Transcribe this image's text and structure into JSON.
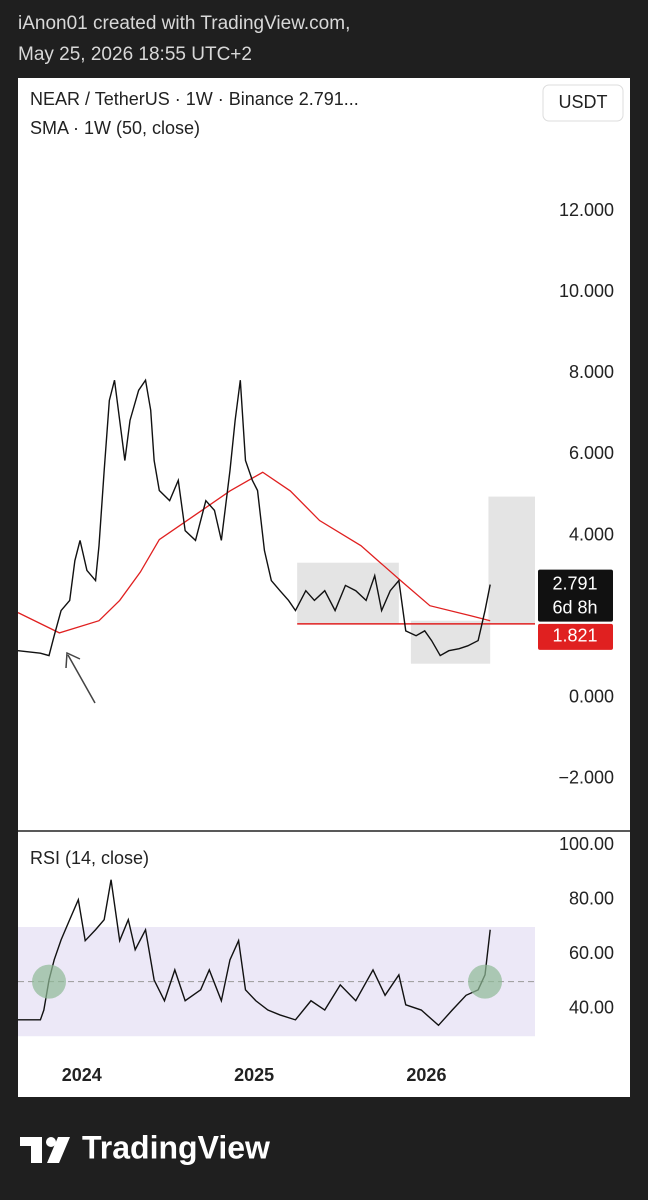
{
  "header": {
    "line1": "iAnon01 created with TradingView.com,",
    "line2": "May 25, 2026 18:55 UTC+2"
  },
  "footer": {
    "brand": "TradingView"
  },
  "chart_data": [
    {
      "type": "line",
      "currency": "USDT",
      "series": [
        {
          "name": "NEAR / TetherUS · 1W · Binance  2.791...",
          "color": "#111111",
          "x": [
            2023.63,
            2023.76,
            2023.81,
            2023.84,
            2023.88,
            2023.93,
            2023.96,
            2023.99,
            2024.03,
            2024.08,
            2024.1,
            2024.13,
            2024.16,
            2024.19,
            2024.22,
            2024.25,
            2024.28,
            2024.33,
            2024.37,
            2024.4,
            2024.42,
            2024.45,
            2024.51,
            2024.56,
            2024.6,
            2024.66,
            2024.72,
            2024.77,
            2024.81,
            2024.86,
            2024.89,
            2024.92,
            2024.95,
            2024.99,
            2025.02,
            2025.06,
            2025.1,
            2025.15,
            2025.2,
            2025.24,
            2025.3,
            2025.35,
            2025.41,
            2025.47,
            2025.53,
            2025.59,
            2025.65,
            2025.7,
            2025.74,
            2025.79,
            2025.84,
            2025.88,
            2025.94,
            2025.99,
            2026.03,
            2026.08,
            2026.13,
            2026.19,
            2026.24,
            2026.3,
            2026.34,
            2026.37
          ],
          "values": [
            1.16,
            1.1,
            1.04,
            1.53,
            2.15,
            2.4,
            3.38,
            3.88,
            3.14,
            2.89,
            3.75,
            5.6,
            7.33,
            7.83,
            6.84,
            5.85,
            6.84,
            7.58,
            7.83,
            7.09,
            5.85,
            5.11,
            4.86,
            5.36,
            4.12,
            3.88,
            4.86,
            4.62,
            3.88,
            5.6,
            6.84,
            7.83,
            5.85,
            5.36,
            5.11,
            3.63,
            2.89,
            2.64,
            2.4,
            2.15,
            2.64,
            2.4,
            2.64,
            2.15,
            2.77,
            2.64,
            2.4,
            3.01,
            2.15,
            2.64,
            2.89,
            1.65,
            1.53,
            1.65,
            1.41,
            1.04,
            1.16,
            1.21,
            1.28,
            1.41,
            2.15,
            2.791
          ]
        },
        {
          "name": "SMA · 1W (50, close)",
          "color": "#e02020",
          "x": [
            2023.63,
            2023.87,
            2024.1,
            2024.22,
            2024.34,
            2024.45,
            2024.69,
            2024.86,
            2025.05,
            2025.21,
            2025.38,
            2025.62,
            2025.85,
            2026.02,
            2026.26,
            2026.37
          ],
          "values": [
            2.1,
            1.6,
            1.9,
            2.4,
            3.1,
            3.9,
            4.6,
            5.1,
            5.56,
            5.1,
            4.37,
            3.75,
            2.89,
            2.27,
            2.02,
            1.9
          ]
        }
      ],
      "last_price": 2.791,
      "countdown": "6d 8h",
      "hline": {
        "value": 1.821,
        "x_start": 2025.25,
        "color": "#e02020"
      },
      "zones": [
        {
          "x": [
            2025.25,
            2025.84
          ],
          "y": [
            1.83,
            3.33
          ]
        },
        {
          "x": [
            2025.91,
            2026.37
          ],
          "y": [
            0.84,
            1.9
          ]
        },
        {
          "x": [
            2026.36,
            2026.63
          ],
          "y": [
            1.83,
            4.96
          ]
        }
      ],
      "xlim": [
        2023.63,
        2026.63
      ],
      "ylim": [
        -3.26,
        15.28
      ],
      "yticks": [
        {
          "value": -2,
          "label": "−2.000"
        },
        {
          "value": 0,
          "label": "0.000"
        },
        {
          "value": 4,
          "label": "4.000"
        },
        {
          "value": 6,
          "label": "6.000"
        },
        {
          "value": 8,
          "label": "8.000"
        },
        {
          "value": 10,
          "label": "10.000"
        },
        {
          "value": 12,
          "label": "12.000"
        }
      ],
      "grid": false
    },
    {
      "type": "line",
      "series": [
        {
          "name": "RSI (14, close)",
          "color": "#111111",
          "x": [
            2023.63,
            2023.76,
            2023.78,
            2023.81,
            2023.84,
            2023.88,
            2023.93,
            2023.98,
            2024.02,
            2024.08,
            2024.13,
            2024.17,
            2024.22,
            2024.27,
            2024.31,
            2024.37,
            2024.42,
            2024.48,
            2024.54,
            2024.6,
            2024.69,
            2024.74,
            2024.81,
            2024.86,
            2024.91,
            2024.95,
            2025.01,
            2025.08,
            2025.15,
            2025.24,
            2025.33,
            2025.41,
            2025.5,
            2025.59,
            2025.69,
            2025.76,
            2025.84,
            2025.88,
            2025.97,
            2026.07,
            2026.15,
            2026.23,
            2026.3,
            2026.34,
            2026.37
          ],
          "values": [
            36,
            36,
            39.6,
            50.6,
            58,
            65.3,
            72.7,
            80,
            65,
            69,
            72.7,
            87.3,
            65,
            72.7,
            61.7,
            69,
            50.6,
            43,
            54.3,
            43,
            47,
            54.3,
            43,
            58,
            65,
            47,
            43,
            39.6,
            37.8,
            36,
            43,
            39.6,
            48.8,
            43,
            54.3,
            45,
            52.5,
            41.5,
            39.6,
            34,
            39.6,
            45,
            47,
            52.5,
            69
          ]
        }
      ],
      "band": [
        30,
        70
      ],
      "midline": 50,
      "highlights": [
        {
          "x": 2023.81,
          "y": 50
        },
        {
          "x": 2026.34,
          "y": 50
        }
      ],
      "highlight_color": "#8fb996",
      "xlim": [
        2023.63,
        2026.63
      ],
      "ylim": [
        21.3,
        104.8
      ],
      "yticks": [
        {
          "value": 40,
          "label": "40.00"
        },
        {
          "value": 60,
          "label": "60.00"
        },
        {
          "value": 80,
          "label": "80.00"
        },
        {
          "value": 100,
          "label": "100.00"
        }
      ],
      "xticks": [
        2024,
        2025,
        2026
      ],
      "grid": false
    }
  ]
}
